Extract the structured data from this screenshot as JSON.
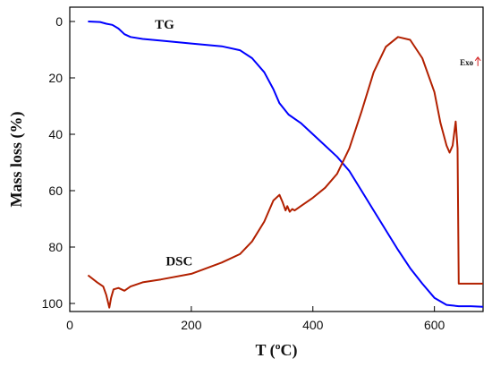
{
  "chart_data": {
    "type": "line",
    "title": "",
    "xlabel": "T (ºC)",
    "ylabel": "Mass loss (%)",
    "xlim": [
      0,
      680
    ],
    "ylim": [
      0,
      104
    ],
    "y_inverted": true,
    "x_ticks": [
      0,
      200,
      400,
      600
    ],
    "y_ticks": [
      0,
      20,
      40,
      60,
      80,
      100
    ],
    "grid": false,
    "legend": "none",
    "annotations": [
      {
        "text": "TG",
        "x": 140,
        "y": 2.6
      },
      {
        "text": "DSC",
        "x": 158,
        "y": 86.5
      },
      {
        "text": "Exo",
        "x": 642,
        "y": 15.5
      }
    ],
    "series": [
      {
        "name": "TG",
        "color": "#0000ff",
        "x": [
          30,
          50,
          60,
          70,
          80,
          90,
          100,
          120,
          150,
          200,
          250,
          280,
          300,
          320,
          335,
          345,
          360,
          380,
          400,
          420,
          440,
          460,
          480,
          500,
          520,
          540,
          560,
          580,
          600,
          620,
          640,
          660,
          680
        ],
        "y": [
          0,
          0.2,
          0.8,
          1.2,
          2.5,
          4.5,
          5.5,
          6.2,
          6.8,
          7.8,
          8.8,
          10.2,
          13,
          18,
          24,
          29,
          33,
          36,
          40,
          44,
          48,
          53,
          60,
          67,
          74,
          81,
          87.5,
          93,
          98,
          100.5,
          101,
          101,
          101.2
        ]
      },
      {
        "name": "DSC",
        "color": "#b22000",
        "x": [
          30,
          45,
          55,
          60,
          65,
          68,
          72,
          80,
          90,
          100,
          120,
          150,
          200,
          250,
          280,
          300,
          320,
          335,
          345,
          350,
          355,
          358,
          362,
          366,
          370,
          380,
          400,
          420,
          440,
          460,
          480,
          500,
          520,
          540,
          560,
          580,
          600,
          610,
          620,
          625,
          630,
          635,
          638,
          640,
          645,
          660,
          680
        ],
        "y": [
          90,
          92.5,
          94,
          97,
          101.5,
          98,
          95,
          94.5,
          95.5,
          94,
          92.5,
          91.5,
          89.5,
          85.5,
          82.5,
          78,
          71,
          63.5,
          61.5,
          64,
          67,
          65.5,
          67.5,
          66.5,
          67,
          65.5,
          62.5,
          59,
          54,
          45,
          32,
          18,
          9,
          5.5,
          6.5,
          13,
          25,
          36,
          44,
          46.5,
          44,
          35.5,
          45,
          93,
          93,
          93,
          93
        ]
      }
    ]
  }
}
